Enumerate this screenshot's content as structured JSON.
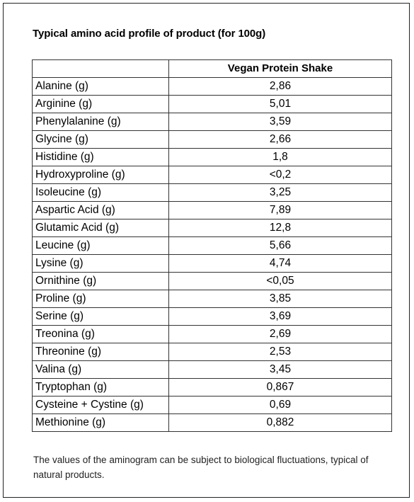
{
  "title": "Typical amino acid profile of product (for 100g)",
  "table": {
    "header_blank": "",
    "header_product": "Vegan Protein Shake",
    "rows": [
      {
        "name": "Alanine (g)",
        "value": "2,86"
      },
      {
        "name": "Arginine (g)",
        "value": "5,01"
      },
      {
        "name": "Phenylalanine (g)",
        "value": "3,59"
      },
      {
        "name": "Glycine (g)",
        "value": "2,66"
      },
      {
        "name": "Histidine (g)",
        "value": "1,8"
      },
      {
        "name": "Hydroxyproline (g)",
        "value": "<0,2"
      },
      {
        "name": "Isoleucine (g)",
        "value": "3,25"
      },
      {
        "name": "Aspartic Acid (g)",
        "value": "7,89"
      },
      {
        "name": "Glutamic Acid (g)",
        "value": "12,8"
      },
      {
        "name": "Leucine (g)",
        "value": "5,66"
      },
      {
        "name": "Lysine (g)",
        "value": "4,74"
      },
      {
        "name": "Ornithine (g)",
        "value": "<0,05"
      },
      {
        "name": "Proline (g)",
        "value": "3,85"
      },
      {
        "name": "Serine (g)",
        "value": "3,69"
      },
      {
        "name": "Treonina (g)",
        "value": "2,69"
      },
      {
        "name": "Threonine (g)",
        "value": "2,53"
      },
      {
        "name": "Valina (g)",
        "value": "3,45"
      },
      {
        "name": "Tryptophan (g)",
        "value": "0,867"
      },
      {
        "name": "Cysteine + Cystine (g)",
        "value": "0,69"
      },
      {
        "name": "Methionine (g)",
        "value": "0,882"
      }
    ]
  },
  "note": "The values of the aminogram can be subject to biological fluctuations, typical of natural products."
}
